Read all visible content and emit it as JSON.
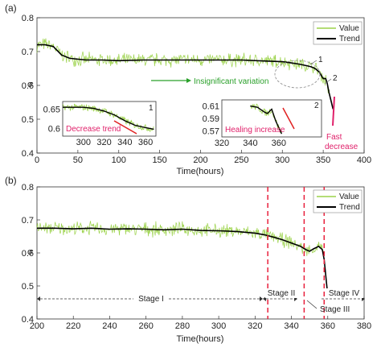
{
  "chart_data": [
    {
      "panel": "(a)",
      "type": "line",
      "xlabel": "Time(hours)",
      "ylabel": "σ",
      "xlim": [
        0,
        400
      ],
      "ylim": [
        0.4,
        0.8
      ],
      "xticks": [
        "0",
        "50",
        "100",
        "150",
        "200",
        "250",
        "300",
        "350",
        "400"
      ],
      "yticks": [
        "0.4",
        "0.5",
        "0.6",
        "0.7",
        "0.8"
      ],
      "legend": {
        "position": "top-right",
        "entries": [
          "Value",
          "Trend"
        ]
      },
      "series": [
        {
          "name": "Value",
          "color": "#9bd24a"
        },
        {
          "name": "Trend",
          "color": "#000000",
          "x": [
            0,
            10,
            20,
            30,
            40,
            60,
            80,
            100,
            130,
            160,
            190,
            220,
            250,
            280,
            300,
            310,
            320,
            330,
            335,
            340,
            345,
            350,
            353,
            355,
            357,
            360,
            362
          ],
          "y": [
            0.72,
            0.72,
            0.715,
            0.69,
            0.68,
            0.675,
            0.675,
            0.673,
            0.675,
            0.675,
            0.675,
            0.675,
            0.675,
            0.672,
            0.67,
            0.667,
            0.663,
            0.658,
            0.655,
            0.65,
            0.64,
            0.62,
            0.62,
            0.605,
            0.58,
            0.55,
            0.53
          ]
        }
      ],
      "annotations": {
        "insignificant": "Insignificant variation",
        "label1": "1",
        "label2": "2",
        "fast": [
          "Fast",
          "decrease"
        ]
      },
      "insets": [
        {
          "label": "1",
          "xlim": [
            280,
            370
          ],
          "ylim": [
            0.58,
            0.67
          ],
          "xticks": [
            "300",
            "320",
            "340",
            "360"
          ],
          "yticks": [
            "0.6",
            "0.65"
          ],
          "note": "Decrease trend",
          "trend_x": [
            280,
            290,
            300,
            310,
            320,
            330,
            340,
            350,
            360,
            368
          ],
          "trend_y": [
            0.655,
            0.655,
            0.655,
            0.652,
            0.645,
            0.635,
            0.62,
            0.608,
            0.602,
            0.598
          ]
        },
        {
          "label": "2",
          "xlim": [
            320,
            390
          ],
          "ylim": [
            0.56,
            0.62
          ],
          "xticks": [
            "320",
            "340",
            "360"
          ],
          "yticks": [
            "0.57",
            "0.59",
            "0.61"
          ],
          "note": "Healing increase",
          "trend_x": [
            340,
            345,
            350,
            352,
            355,
            358,
            360,
            362
          ],
          "trend_y": [
            0.61,
            0.608,
            0.6,
            0.598,
            0.605,
            0.585,
            0.575,
            0.565
          ]
        }
      ]
    },
    {
      "panel": "(b)",
      "type": "line",
      "xlabel": "Time(hours)",
      "ylabel": "σ",
      "xlim": [
        200,
        380
      ],
      "ylim": [
        0.4,
        0.8
      ],
      "xticks": [
        "200",
        "220",
        "240",
        "260",
        "280",
        "300",
        "320",
        "340",
        "360",
        "380"
      ],
      "yticks": [
        "0.4",
        "0.5",
        "0.6",
        "0.7",
        "0.8"
      ],
      "legend": {
        "position": "top-right",
        "entries": [
          "Value",
          "Trend"
        ]
      },
      "series": [
        {
          "name": "Value",
          "color": "#9bd24a"
        },
        {
          "name": "Trend",
          "color": "#000000",
          "x": [
            200,
            210,
            220,
            230,
            240,
            250,
            260,
            270,
            280,
            290,
            300,
            310,
            320,
            325,
            330,
            335,
            340,
            345,
            348,
            350,
            352,
            355,
            357,
            358,
            360
          ],
          "y": [
            0.675,
            0.675,
            0.673,
            0.675,
            0.672,
            0.673,
            0.672,
            0.67,
            0.672,
            0.668,
            0.667,
            0.665,
            0.66,
            0.655,
            0.648,
            0.64,
            0.63,
            0.62,
            0.61,
            0.605,
            0.612,
            0.62,
            0.61,
            0.58,
            0.47
          ]
        }
      ],
      "stage_boundaries": [
        327,
        347,
        358
      ],
      "stages": [
        "Stage I",
        "Stage II",
        "Stage III",
        "Stage IV"
      ]
    }
  ]
}
